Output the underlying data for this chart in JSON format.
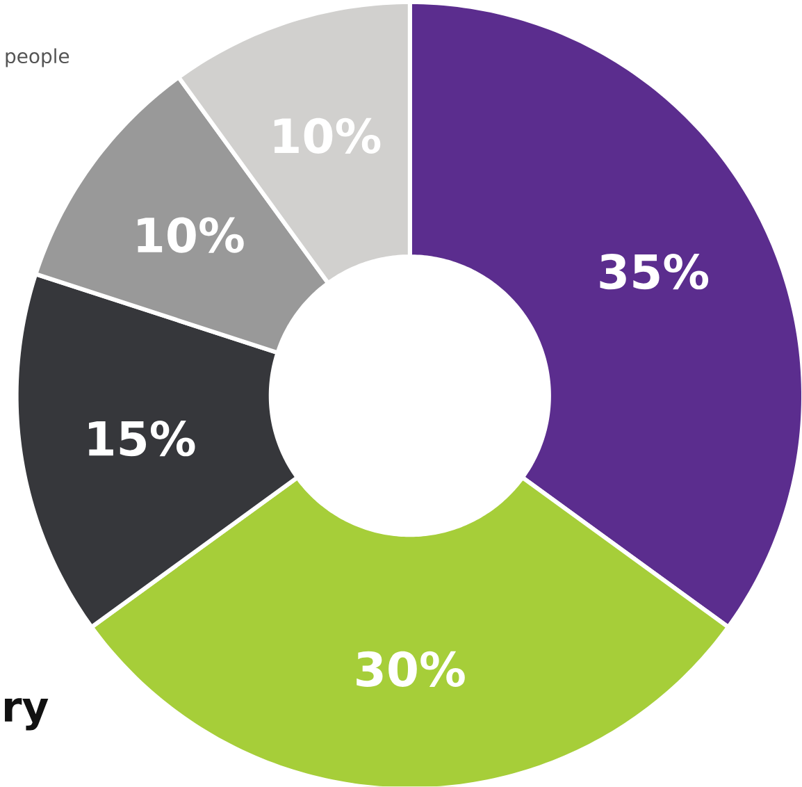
{
  "chart_data": {
    "type": "donut",
    "categories": [
      null,
      null,
      null,
      null,
      null
    ],
    "values": [
      35,
      30,
      15,
      10,
      10
    ],
    "value_labels": [
      "35%",
      "30%",
      "15%",
      "10%",
      "10%"
    ],
    "colors": [
      "#5b2d8e",
      "#a6ce39",
      "#36373b",
      "#999999",
      "#d1d0ce"
    ],
    "annotations": [
      "people",
      "ry"
    ]
  }
}
